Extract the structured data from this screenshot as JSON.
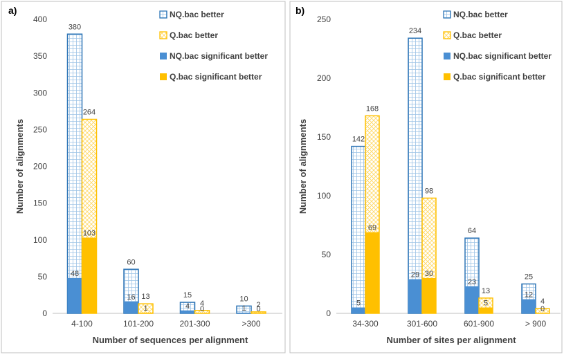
{
  "colors": {
    "nq": "#4a8fd3",
    "q": "#ffc000",
    "nq_border": "#2e75b6",
    "q_border": "#ffc000"
  },
  "chart_data": [
    {
      "type": "bar",
      "panel_label": "a)",
      "xlabel": "Number of sequences per alignment",
      "ylabel": "Number of alignments",
      "ylim": [
        0,
        400
      ],
      "yticks": [
        0,
        50,
        100,
        150,
        200,
        250,
        300,
        350,
        400
      ],
      "categories": [
        "4-100",
        "101-200",
        "201-300",
        ">300"
      ],
      "series": [
        {
          "name": "NQ.bac better",
          "values": [
            380,
            60,
            15,
            10
          ]
        },
        {
          "name": "Q.bac better",
          "values": [
            264,
            13,
            4,
            2
          ]
        },
        {
          "name": "NQ.bac significant better",
          "values": [
            48,
            16,
            4,
            1
          ]
        },
        {
          "name": "Q.bac significant better",
          "values": [
            103,
            1,
            0,
            0
          ]
        }
      ],
      "legend_position": "top-right",
      "grid": false
    },
    {
      "type": "bar",
      "panel_label": "b)",
      "xlabel": "Number of sites per alignment",
      "ylabel": "Number of alignments",
      "ylim": [
        0,
        250
      ],
      "yticks": [
        0,
        50,
        100,
        150,
        200,
        250
      ],
      "categories": [
        "34-300",
        "301-600",
        "601-900",
        "> 900"
      ],
      "series": [
        {
          "name": "NQ.bac better",
          "values": [
            142,
            234,
            64,
            25
          ]
        },
        {
          "name": "Q.bac better",
          "values": [
            168,
            98,
            13,
            4
          ]
        },
        {
          "name": "NQ.bac significant better",
          "values": [
            5,
            29,
            23,
            12
          ]
        },
        {
          "name": "Q.bac significant better",
          "values": [
            69,
            30,
            5,
            0
          ]
        }
      ],
      "legend_position": "top-right",
      "grid": false
    }
  ]
}
